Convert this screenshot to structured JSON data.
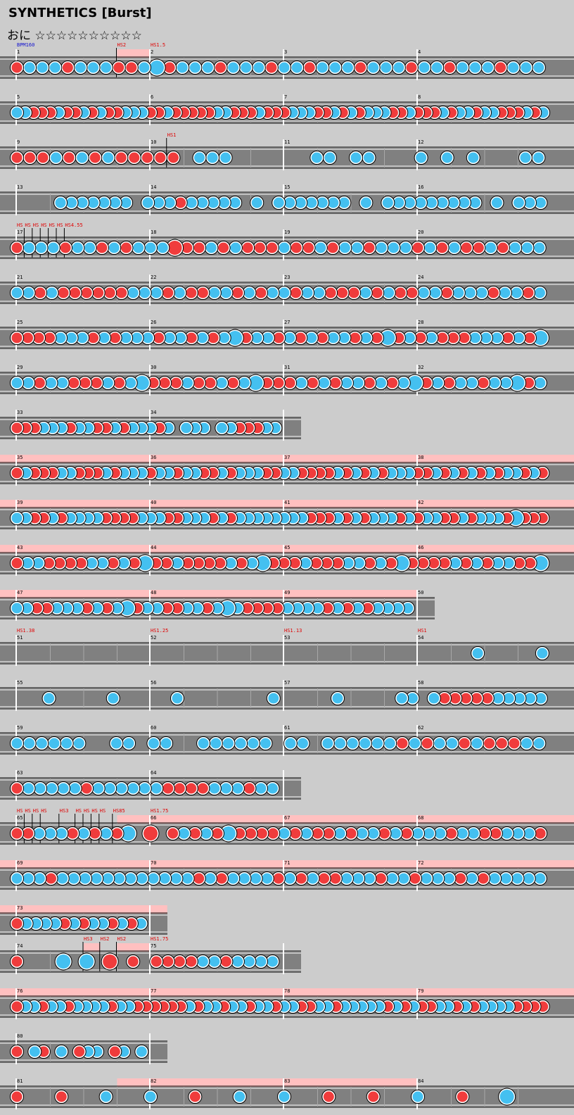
{
  "header": {
    "title": "SYNTHETICS [Burst]",
    "course": "おに",
    "stars": "☆☆☆☆☆☆☆☆☆☆"
  },
  "colors": {
    "background": "#cccccc",
    "lane": "#808080",
    "gogo": "#ffc0c0",
    "don": "#f03c3c",
    "ka": "#44c0f0",
    "bpm_text": "#1010d0",
    "event_text": "#e00000"
  },
  "rows": [
    {
      "measures": [
        "1",
        "2",
        "3",
        "4"
      ],
      "width": 4,
      "events": [
        {
          "text": "BPM160",
          "type": "bpm",
          "measure": 0,
          "pos": 0
        },
        {
          "text": "HS2",
          "measure": 0,
          "pos": 0.75
        },
        {
          "text": "HS1.5",
          "measure": 1,
          "pos": 0
        }
      ],
      "gogo": [
        [
          0.75,
          1
        ]
      ],
      "notes": "dkkkdkkkddkKdkkkdkkkdkkdkkkdkkkdkkdkkkdkkk"
    },
    {
      "measures": [
        "5",
        "6",
        "7",
        "8"
      ],
      "width": 4,
      "notes": "kkdddkddkdkddkkkddkdddddkkdddkdddkkkddkdkdkkkddkdddkdkkdkkdddkdk"
    },
    {
      "measures": [
        "9",
        "10",
        "11",
        "12"
      ],
      "width": 4,
      "events": [
        {
          "text": "HS1",
          "measure": 1,
          "pos": 0.125
        }
      ],
      "notes": "dddkdkdkddddd-kkk------kk-kk---k-k-k---kk"
    },
    {
      "measures": [
        "13",
        "14",
        "15",
        "16"
      ],
      "width": 4,
      "notes": "----kkkkkkk-kkkdkkkkk-k-kkkkkkk-k-kkkkkkkkk-k-kkk"
    },
    {
      "measures": [
        "17",
        "18",
        "19",
        "20"
      ],
      "width": 4,
      "events": [
        {
          "text": "HS",
          "measure": 0,
          "pos": 0
        },
        {
          "text": "HS",
          "measure": 0,
          "pos": 0.06
        },
        {
          "text": "HS",
          "measure": 0,
          "pos": 0.12
        },
        {
          "text": "HS",
          "measure": 0,
          "pos": 0.18
        },
        {
          "text": "HS",
          "measure": 0,
          "pos": 0.24
        },
        {
          "text": "HS",
          "measure": 0,
          "pos": 0.3
        },
        {
          "text": "HS4.55",
          "measure": 0,
          "pos": 0.36
        }
      ],
      "notes": "dkkkdkkdkdkkkDddkdkdddkddkdkkdkkkdkdkddkdkkk"
    },
    {
      "measures": [
        "21",
        "22",
        "23",
        "24"
      ],
      "width": 4,
      "notes": "kkdkddddddkkkdkddkkdkdkkdkkdddkdkddkkdkkkdkkdk"
    },
    {
      "measures": [
        "25",
        "26",
        "27",
        "28"
      ],
      "width": 4,
      "notes": "ddddkkkdkdkkkdkkdkdkKdkkdkdkdkkdkdKdkdkdddkkkdkdK"
    },
    {
      "measures": [
        "29",
        "30",
        "31",
        "32"
      ],
      "width": 4,
      "notes": "kkdkkdddkdkKdddkddkdkKdddkdkdkkdkdkKdkdkkdkkKdk"
    },
    {
      "measures": [
        "33",
        "34"
      ],
      "width": 2,
      "notes": "dddkkkdkkddkdkkkdk-kkk-kkdddkk"
    },
    {
      "measures": [
        "35",
        "36",
        "37",
        "38"
      ],
      "width": 4,
      "gogo": [
        [
          0,
          4
        ]
      ],
      "notes": "dkdddkkdddkdkkkdkkdkkddkdkkkddkkddddkdkdkdkkkddkdkdkdkdkkdkd"
    },
    {
      "measures": [
        "39",
        "40",
        "41",
        "42"
      ],
      "width": 4,
      "gogo": [
        [
          0,
          4
        ]
      ],
      "notes": "kkddkdkkkkddddkkkddkkkdkdkkkkkkkkdddkdkdkkkdkdkkddkdkkkdKddd"
    },
    {
      "measures": [
        "43",
        "44",
        "45",
        "46"
      ],
      "width": 4,
      "gogo": [
        [
          0,
          4
        ]
      ],
      "notes": "dkkddddkkdkdKddkddddkdkKdddkdddkkdkdKddddkdkdkkddK"
    },
    {
      "measures": [
        "47",
        "48",
        "49",
        "50"
      ],
      "width": 3,
      "gogo": [
        [
          0,
          3
        ]
      ],
      "notes": "kkddkkkdkdkKdkkddkkdkKkddddkkkkdkdkdkkkk"
    },
    {
      "measures": [
        "51",
        "52",
        "53",
        "54"
      ],
      "width": 4,
      "events": [
        {
          "text": "HS1.38",
          "measure": 0,
          "pos": 0
        },
        {
          "text": "HS1.25",
          "measure": 1,
          "pos": 0
        },
        {
          "text": "HS1.13",
          "measure": 2,
          "pos": 0
        },
        {
          "text": "HS1",
          "measure": 3,
          "pos": 0
        }
      ],
      "notes": "--------------------------------------------------k------k"
    },
    {
      "measures": [
        "55",
        "56",
        "57",
        "58"
      ],
      "width": 4,
      "notes": "---k-----k-----k--------k-----k-----kk-kdddddkkkkk"
    },
    {
      "measures": [
        "59",
        "60",
        "61",
        "62"
      ],
      "width": 4,
      "notes": "kkkkkk--kk-kk--kkkkkk-kk-kkkkkkdkdkkdkdddkk"
    },
    {
      "measures": [
        "63",
        "64"
      ],
      "width": 2,
      "notes": "dkkkkkdkkkkkkddddkkkdkk"
    },
    {
      "measures": [
        "65",
        "66",
        "67",
        "68"
      ],
      "width": 4,
      "events": [
        {
          "text": "HS",
          "measure": 0,
          "pos": 0
        },
        {
          "text": "HS",
          "measure": 0,
          "pos": 0.06
        },
        {
          "text": "HS",
          "measure": 0,
          "pos": 0.12
        },
        {
          "text": "HS",
          "measure": 0,
          "pos": 0.18
        },
        {
          "text": "HS3",
          "measure": 0,
          "pos": 0.32
        },
        {
          "text": "HS",
          "measure": 0,
          "pos": 0.44
        },
        {
          "text": "HS",
          "measure": 0,
          "pos": 0.5
        },
        {
          "text": "HS",
          "measure": 0,
          "pos": 0.56
        },
        {
          "text": "HS",
          "measure": 0,
          "pos": 0.62
        },
        {
          "text": "HS85",
          "measure": 0,
          "pos": 0.72
        },
        {
          "text": "HS1.75",
          "measure": 1,
          "pos": 0
        }
      ],
      "gogo": [
        [
          0.75,
          4
        ]
      ],
      "notes": "ddkkkdkdkdK-D-dkdkdKddddkdkddkdkkdkdkkkdkkddkkkd"
    },
    {
      "measures": [
        "69",
        "70",
        "71",
        "72"
      ],
      "width": 4,
      "gogo": [
        [
          0,
          4
        ]
      ],
      "notes": "kkkdkkkkkkkkkkkkdkdkkkkdkdkddkkkdkkdkkkdkdkkkkk"
    },
    {
      "measures": [
        "73"
      ],
      "width": 1,
      "gogo": [
        [
          0,
          1.125
        ]
      ],
      "notes": "dkkkkdkdkkdkdk"
    },
    {
      "measures": [
        "74",
        "75"
      ],
      "width": 2,
      "events": [
        {
          "text": "HS3",
          "measure": 0,
          "pos": 0.5
        },
        {
          "text": "HS2",
          "measure": 0,
          "pos": 0.625
        },
        {
          "text": "HS2",
          "measure": 0,
          "pos": 0.75
        },
        {
          "text": "HS1.75",
          "measure": 1,
          "pos": 0
        }
      ],
      "gogo": [
        [
          0.5,
          0.625
        ],
        [
          0.75,
          1
        ]
      ],
      "notes": "d---K-K-D-d-ddddkkdkkkk"
    },
    {
      "measures": [
        "76",
        "77",
        "78",
        "79"
      ],
      "width": 4,
      "gogo": [
        [
          0,
          4
        ]
      ],
      "notes": "dkkdkkdkkkkdkkddddddkdkkdkkdkkdkkddkkdkkkkkdkdkddkkdkdkkkkdddd"
    },
    {
      "measures": [
        "80"
      ],
      "width": 1,
      "notes": "d-kd-k-dkk-dk-k"
    },
    {
      "measures": [
        "81",
        "82",
        "83",
        "84"
      ],
      "width": 4,
      "gogo": [
        [
          0.75,
          3
        ]
      ],
      "notes": "ddkkdkkddkdK"
    }
  ]
}
